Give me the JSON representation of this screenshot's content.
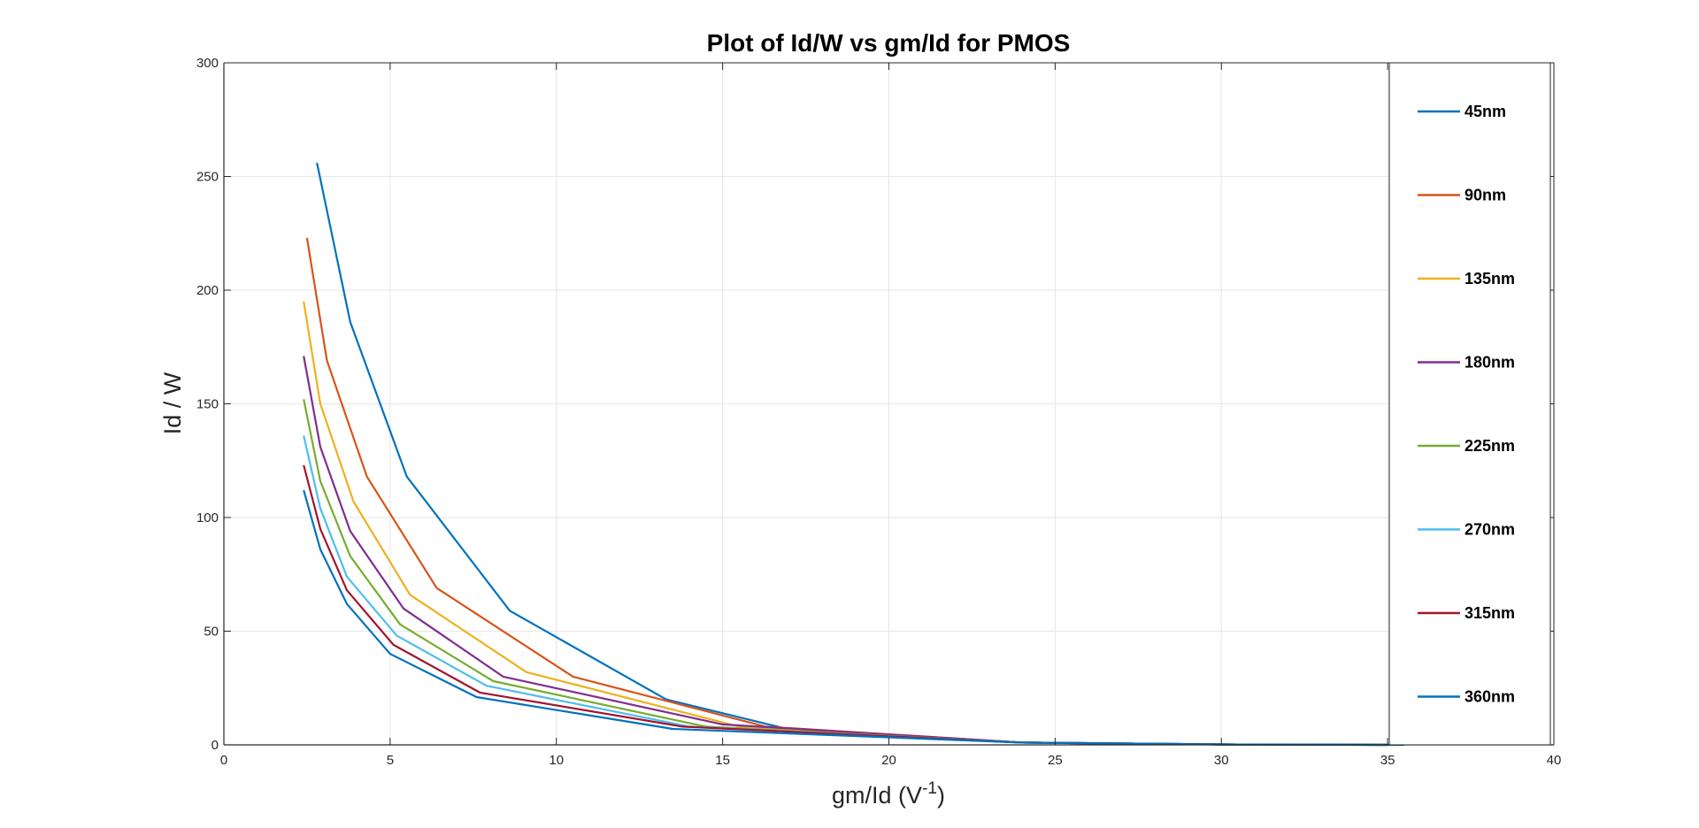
{
  "chart_data": {
    "type": "line",
    "title": "Plot of Id/W vs gm/Id for PMOS",
    "xlabel_base": "gm/Id (V",
    "xlabel_sup": "-1",
    "xlabel_end": ")",
    "ylabel": "Id / W",
    "xlim": [
      0,
      40
    ],
    "ylim": [
      0,
      300
    ],
    "xticks": [
      0,
      5,
      10,
      15,
      20,
      25,
      30,
      35,
      40
    ],
    "yticks": [
      0,
      50,
      100,
      150,
      200,
      250,
      300
    ],
    "grid": true,
    "legend_position": "right",
    "series": [
      {
        "name": "45nm",
        "color": "#0072BD",
        "x": [
          2.8,
          3.8,
          5.5,
          8.6,
          13.3,
          17.5,
          24,
          30,
          35.5
        ],
        "y": [
          256,
          186,
          118,
          59,
          20,
          5,
          1,
          0.2,
          0
        ]
      },
      {
        "name": "90nm",
        "color": "#D95319",
        "x": [
          2.5,
          3.1,
          4.3,
          6.4,
          10.5,
          16.3,
          24,
          30,
          35
        ],
        "y": [
          223,
          169,
          118,
          69,
          30,
          8,
          1,
          0.2,
          0
        ]
      },
      {
        "name": "135nm",
        "color": "#EDB120",
        "x": [
          2.4,
          2.9,
          3.9,
          5.6,
          9.1,
          15.5,
          24,
          30,
          35
        ],
        "y": [
          195,
          150,
          107,
          66,
          32,
          8,
          1,
          0.2,
          0
        ]
      },
      {
        "name": "180nm",
        "color": "#7E2F8E",
        "x": [
          2.4,
          2.9,
          3.8,
          5.4,
          8.4,
          15,
          24,
          30,
          35
        ],
        "y": [
          171,
          131,
          94,
          60,
          30,
          9,
          1,
          0.2,
          0
        ]
      },
      {
        "name": "225nm",
        "color": "#77AC30",
        "x": [
          2.4,
          2.9,
          3.8,
          5.3,
          8.1,
          14.5,
          24,
          30,
          35
        ],
        "y": [
          152,
          116,
          83,
          53,
          28,
          8,
          1,
          0.2,
          0
        ]
      },
      {
        "name": "270nm",
        "color": "#4DBEEE",
        "x": [
          2.4,
          2.9,
          3.7,
          5.2,
          7.9,
          14,
          24,
          30,
          35
        ],
        "y": [
          136,
          104,
          74,
          48,
          26,
          8,
          1,
          0.2,
          0
        ]
      },
      {
        "name": "315nm",
        "color": "#A2142F",
        "x": [
          2.4,
          2.9,
          3.7,
          5.1,
          7.7,
          13.8,
          24,
          30,
          35
        ],
        "y": [
          123,
          95,
          68,
          44,
          23,
          8,
          1,
          0.2,
          0
        ]
      },
      {
        "name": "360nm",
        "color": "#0072BD",
        "x": [
          2.4,
          2.9,
          3.7,
          5.0,
          7.6,
          13.5,
          24,
          30,
          35
        ],
        "y": [
          112,
          86,
          62,
          40,
          21,
          7,
          1,
          0.2,
          0
        ]
      }
    ]
  }
}
